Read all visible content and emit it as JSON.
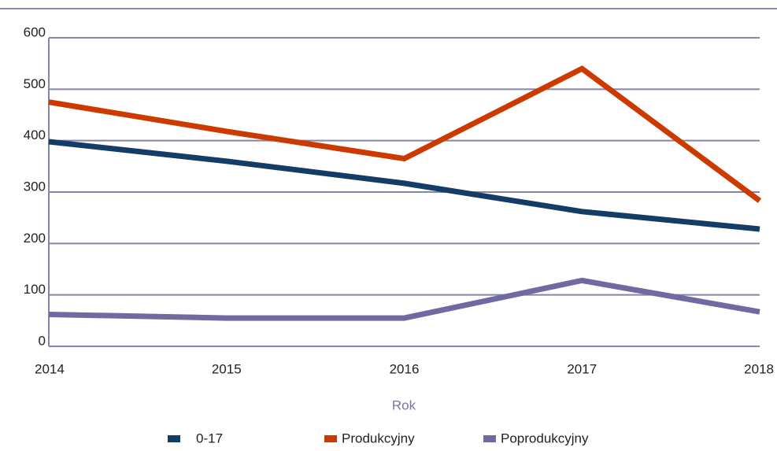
{
  "chart_data": {
    "type": "line",
    "categories": [
      "2014",
      "2015",
      "2016",
      "2017",
      "2018"
    ],
    "series": [
      {
        "name": "0-17",
        "color": "#133c66",
        "values": [
          398,
          360,
          317,
          262,
          228
        ]
      },
      {
        "name": "Produkcyjny",
        "color": "#cc3a00",
        "values": [
          475,
          418,
          365,
          540,
          283
        ]
      },
      {
        "name": "Poprodukcyjny",
        "color": "#6f6aa0",
        "values": [
          62,
          55,
          55,
          128,
          67
        ]
      }
    ],
    "xlabel": "Rok",
    "ylim": [
      0,
      600
    ],
    "yticks": [
      0,
      100,
      200,
      300,
      400,
      500,
      600
    ],
    "grid": true,
    "legend": "bottom"
  }
}
